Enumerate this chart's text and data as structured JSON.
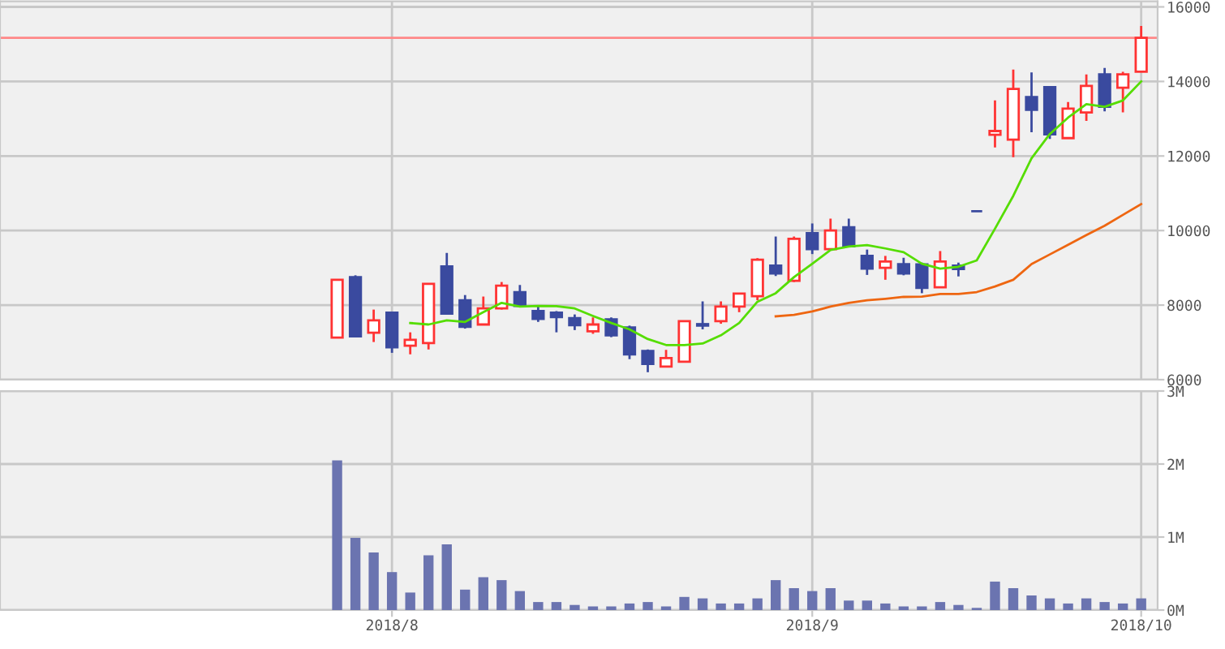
{
  "chart_data": [
    {
      "type": "candlestick",
      "categories": [
        null,
        null,
        null,
        null,
        null,
        null,
        null,
        null,
        null,
        null,
        null,
        null,
        null,
        null,
        null,
        null,
        null,
        null,
        null,
        null,
        null,
        "2018/8",
        null,
        null,
        null,
        null,
        null,
        null,
        null,
        null,
        null,
        null,
        null,
        null,
        null,
        null,
        null,
        null,
        null,
        null,
        null,
        null,
        null,
        null,
        "2018/9",
        null,
        null,
        null,
        null,
        null,
        null,
        null,
        null,
        null,
        null,
        null,
        null,
        null,
        null,
        null,
        null,
        null,
        "2018/10"
      ],
      "ohlc": [
        null,
        null,
        null,
        null,
        null,
        null,
        null,
        null,
        null,
        null,
        null,
        null,
        null,
        null,
        null,
        null,
        null,
        null,
        [
          7130,
          8680,
          7130,
          8680
        ],
        [
          8750,
          8800,
          7160,
          7160
        ],
        [
          7260,
          7880,
          7010,
          7590
        ],
        [
          7800,
          7800,
          6720,
          6870
        ],
        [
          6910,
          7270,
          6680,
          7070
        ],
        [
          6980,
          8570,
          6810,
          8570
        ],
        [
          9040,
          9400,
          7770,
          7770
        ],
        [
          8130,
          8270,
          7370,
          7420
        ],
        [
          7480,
          8230,
          7480,
          7910
        ],
        [
          7910,
          8620,
          7880,
          8520
        ],
        [
          8350,
          8540,
          7980,
          7980
        ],
        [
          7840,
          7960,
          7550,
          7630
        ],
        [
          7800,
          7840,
          7270,
          7680
        ],
        [
          7650,
          7750,
          7330,
          7460
        ],
        [
          7300,
          7670,
          7230,
          7480
        ],
        [
          7620,
          7670,
          7140,
          7190
        ],
        [
          7400,
          7450,
          6550,
          6680
        ],
        [
          6770,
          6810,
          6200,
          6420
        ],
        [
          6350,
          6800,
          6350,
          6580
        ],
        [
          6480,
          7570,
          6480,
          7570
        ],
        [
          7490,
          8100,
          7350,
          7450
        ],
        [
          7570,
          8100,
          7500,
          7960
        ],
        [
          7960,
          8310,
          7810,
          8310
        ],
        [
          8240,
          9260,
          8130,
          9220
        ],
        [
          9060,
          9840,
          8780,
          8850
        ],
        [
          8650,
          9840,
          8620,
          9780
        ],
        [
          9930,
          10190,
          9370,
          9500
        ],
        [
          9500,
          10320,
          9500,
          10000
        ],
        [
          10090,
          10320,
          9580,
          9580
        ],
        [
          9320,
          9490,
          8810,
          8980
        ],
        [
          9000,
          9320,
          8680,
          9170
        ],
        [
          9100,
          9270,
          8800,
          8850
        ],
        [
          9090,
          9140,
          8320,
          8460
        ],
        [
          8480,
          9450,
          8480,
          9170
        ],
        [
          9060,
          9140,
          8770,
          8970
        ],
        [
          10520,
          10520,
          10520,
          10520
        ],
        [
          12570,
          13490,
          12230,
          12670
        ],
        [
          12440,
          14320,
          11970,
          13800
        ],
        [
          13580,
          14240,
          12640,
          13240
        ],
        [
          13850,
          13880,
          12460,
          12580
        ],
        [
          12480,
          13450,
          12480,
          13270
        ],
        [
          13170,
          14190,
          12940,
          13880
        ],
        [
          14190,
          14360,
          13200,
          13320
        ],
        [
          13830,
          14260,
          13170,
          14190
        ],
        [
          14260,
          15490,
          14260,
          15170
        ]
      ],
      "colors": [
        null,
        null,
        null,
        null,
        null,
        null,
        null,
        null,
        null,
        null,
        null,
        null,
        null,
        null,
        null,
        null,
        null,
        null,
        "#ff3333",
        "#3a4a9f",
        "#ff3333",
        "#3a4a9f",
        "#ff3333",
        "#ff3333",
        "#3a4a9f",
        "#3a4a9f",
        "#ff3333",
        "#ff3333",
        "#3a4a9f",
        "#3a4a9f",
        "#3a4a9f",
        "#3a4a9f",
        "#ff3333",
        "#3a4a9f",
        "#3a4a9f",
        "#3a4a9f",
        "#ff3333",
        "#ff3333",
        "#3a4a9f",
        "#ff3333",
        "#ff3333",
        "#ff3333",
        "#3a4a9f",
        "#ff3333",
        "#3a4a9f",
        "#ff3333",
        "#3a4a9f",
        "#3a4a9f",
        "#ff3333",
        "#3a4a9f",
        "#3a4a9f",
        "#ff3333",
        "#3a4a9f",
        "#3a4a9f",
        "#ff3333",
        "#ff3333",
        "#3a4a9f",
        "#3a4a9f",
        "#ff3333",
        "#ff3333",
        "#3a4a9f",
        "#ff3333",
        "#ff3333"
      ],
      "series": [
        {
          "type": "line",
          "color": "#55dd00",
          "values": [
            null,
            null,
            null,
            null,
            null,
            null,
            null,
            null,
            null,
            null,
            null,
            null,
            null,
            null,
            null,
            null,
            null,
            null,
            null,
            null,
            null,
            null,
            7520,
            7480,
            7590,
            7550,
            7810,
            8060,
            7960,
            7980,
            7970,
            7910,
            7710,
            7520,
            7350,
            7090,
            6930,
            6930,
            6970,
            7190,
            7520,
            8090,
            8320,
            8750,
            9110,
            9480,
            9570,
            9610,
            9520,
            9420,
            9110,
            8980,
            9030,
            9200,
            10050,
            10930,
            11940,
            12590,
            13030,
            13390,
            13320,
            13490,
            14000
          ]
        },
        {
          "type": "line",
          "color": "#ee6611",
          "values": [
            null,
            null,
            null,
            null,
            null,
            null,
            null,
            null,
            null,
            null,
            null,
            null,
            null,
            null,
            null,
            null,
            null,
            null,
            null,
            null,
            null,
            null,
            null,
            null,
            null,
            null,
            null,
            null,
            null,
            null,
            null,
            null,
            null,
            null,
            null,
            null,
            null,
            null,
            null,
            null,
            null,
            null,
            7700,
            7740,
            7830,
            7960,
            8060,
            8130,
            8170,
            8220,
            8230,
            8300,
            8300,
            8350,
            8500,
            8680,
            9100,
            9360,
            9620,
            9880,
            10130,
            10420,
            10710
          ]
        }
      ],
      "ylim": [
        6000,
        16150
      ],
      "yticks": [
        6000,
        8000,
        10000,
        12000,
        14000,
        16000
      ],
      "ref_lines": [
        {
          "axis": "y",
          "value": 15170,
          "color": "#ff8888"
        }
      ],
      "grid": true,
      "tick_labels": "y"
    },
    {
      "type": "bar",
      "color": "#6b74b0",
      "categories": [
        null,
        null,
        null,
        null,
        null,
        null,
        null,
        null,
        null,
        null,
        null,
        null,
        null,
        null,
        null,
        null,
        null,
        null,
        null,
        null,
        null,
        "2018/8",
        null,
        null,
        null,
        null,
        null,
        null,
        null,
        null,
        null,
        null,
        null,
        null,
        null,
        null,
        null,
        null,
        null,
        null,
        null,
        null,
        null,
        null,
        "2018/9",
        null,
        null,
        null,
        null,
        null,
        null,
        null,
        null,
        null,
        null,
        null,
        null,
        null,
        null,
        null,
        null,
        null,
        "2018/10"
      ],
      "values": [
        null,
        null,
        null,
        null,
        null,
        null,
        null,
        null,
        null,
        null,
        null,
        null,
        null,
        null,
        null,
        null,
        null,
        null,
        2050000,
        990000,
        790000,
        520000,
        240000,
        750000,
        900000,
        280000,
        450000,
        410000,
        260000,
        110000,
        110000,
        70000,
        50000,
        50000,
        90000,
        110000,
        50000,
        180000,
        160000,
        90000,
        90000,
        160000,
        410000,
        300000,
        260000,
        300000,
        130000,
        130000,
        90000,
        50000,
        50000,
        110000,
        70000,
        30000,
        390000,
        300000,
        200000,
        160000,
        90000,
        160000,
        110000,
        90000,
        160000
      ],
      "ylim": [
        0,
        3000000
      ],
      "yticks": [
        {
          "value": 0,
          "label": "0M"
        },
        {
          "value": 1000000,
          "label": "1M"
        },
        {
          "value": 2000000,
          "label": "2M"
        },
        {
          "value": 3000000,
          "label": "3M"
        }
      ],
      "grid": true
    }
  ]
}
